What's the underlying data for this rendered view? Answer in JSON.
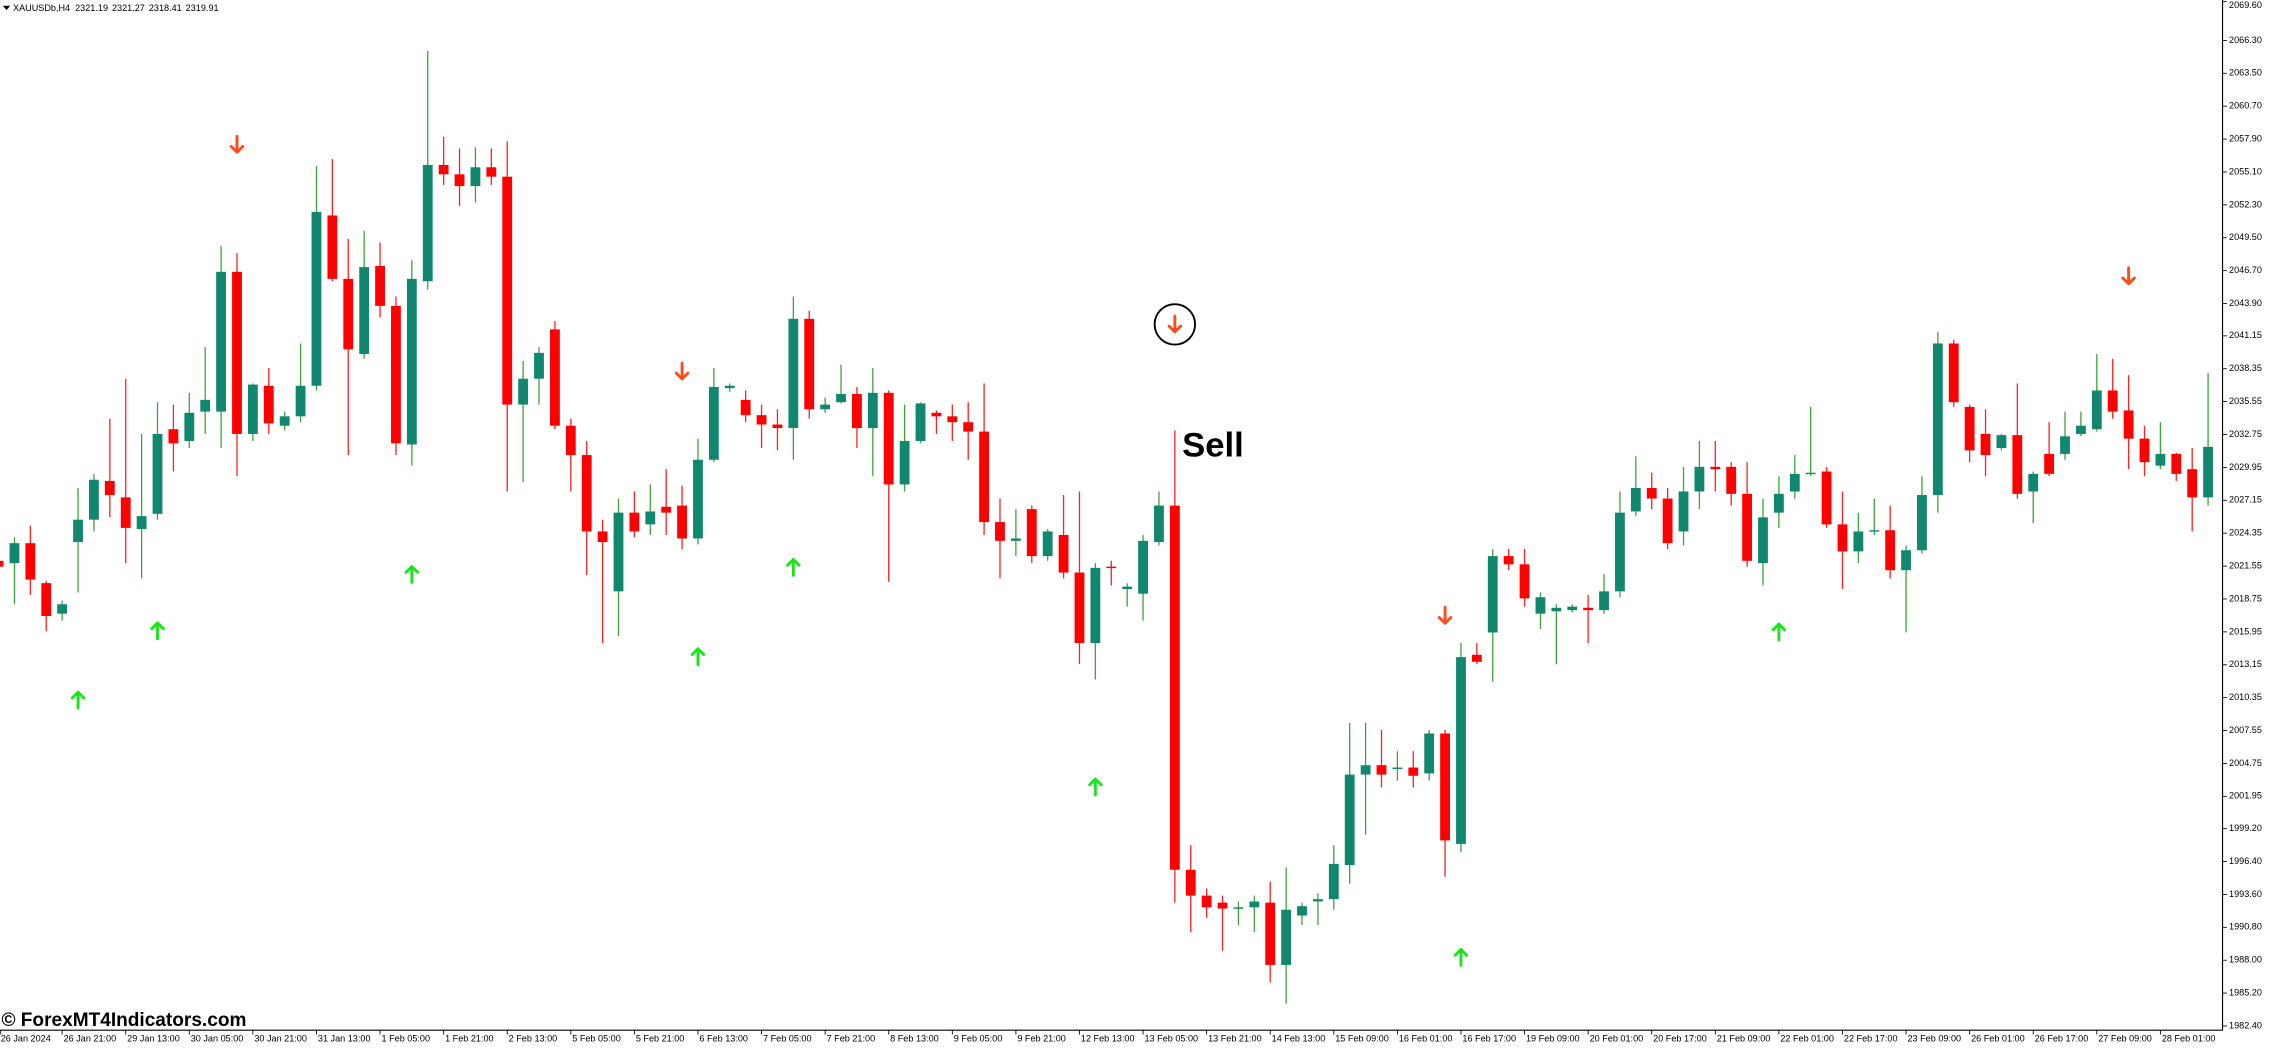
{
  "chart_data": {
    "type": "candlestick",
    "title": "XAUUSDb,H4",
    "last_quote": [
      2321.19,
      2321.27,
      2318.41,
      2319.91
    ],
    "annotation": "Sell",
    "watermark": "© ForexMT4Indicators.com",
    "up_color": "#11876f",
    "down_color": "#ff0000",
    "up_wick_color": "#3aa63a",
    "down_wick_color": "#ff2020",
    "buy_color": "#19e619",
    "sell_color": "#ff4a1a",
    "grid": false,
    "ylim": [
      1982.04,
      2069.74
    ],
    "yticks": [
      {
        "value": 2069.6,
        "label": "2069.60"
      },
      {
        "value": 2066.3,
        "label": "2066.30"
      },
      {
        "value": 2063.5,
        "label": "2063.50"
      },
      {
        "value": 2060.7,
        "label": "2060.70"
      },
      {
        "value": 2057.9,
        "label": "2057.90"
      },
      {
        "value": 2055.1,
        "label": "2055.10"
      },
      {
        "value": 2052.3,
        "label": "2052.30"
      },
      {
        "value": 2049.5,
        "label": "2049.50"
      },
      {
        "value": 2046.7,
        "label": "2046.70"
      },
      {
        "value": 2043.9,
        "label": "2043.90"
      },
      2041.15,
      2038.35,
      2035.55,
      2032.75,
      2029.95,
      2027.15,
      2024.35,
      2021.55,
      2018.75,
      2015.95,
      2013.15,
      2010.35,
      2007.55,
      2004.75,
      2001.95,
      {
        "value": 1999.2,
        "label": "1999.20"
      },
      {
        "value": 1996.4,
        "label": "1996.40"
      },
      {
        "value": 1993.6,
        "label": "1993.60"
      },
      {
        "value": 1990.8,
        "label": "1990.80"
      },
      {
        "value": 1988.0,
        "label": "1988.00"
      },
      {
        "value": 1985.2,
        "label": "1985.20"
      },
      {
        "value": 1982.4,
        "label": "1982.40"
      }
    ],
    "categories": [
      "26 Jan 2024",
      null,
      null,
      null,
      "26 Jan 21:00",
      null,
      null,
      null,
      "29 Jan 13:00",
      null,
      null,
      null,
      "30 Jan 05:00",
      null,
      null,
      null,
      "30 Jan 21:00",
      null,
      null,
      null,
      "31 Jan 13:00",
      null,
      null,
      null,
      "1 Feb 05:00",
      null,
      null,
      null,
      "1 Feb 21:00",
      null,
      null,
      null,
      "2 Feb 13:00",
      null,
      null,
      null,
      "5 Feb 05:00",
      null,
      null,
      null,
      "5 Feb 21:00",
      null,
      null,
      null,
      "6 Feb 13:00",
      null,
      null,
      null,
      "7 Feb 05:00",
      null,
      null,
      null,
      "7 Feb 21:00",
      null,
      null,
      null,
      "8 Feb 13:00",
      null,
      null,
      null,
      "9 Feb 05:00",
      null,
      null,
      null,
      "9 Feb 21:00",
      null,
      null,
      null,
      "12 Feb 13:00",
      null,
      null,
      null,
      "13 Feb 05:00",
      null,
      null,
      null,
      "13 Feb 21:00",
      null,
      null,
      null,
      "14 Feb 13:00",
      null,
      null,
      null,
      "15 Feb 09:00",
      null,
      null,
      null,
      "16 Feb 01:00",
      null,
      null,
      null,
      "16 Feb 17:00",
      null,
      null,
      null,
      "19 Feb 09:00",
      null,
      null,
      null,
      "20 Feb 01:00",
      null,
      null,
      null,
      "20 Feb 17:00",
      null,
      null,
      null,
      "21 Feb 09:00",
      null,
      null,
      null,
      "22 Feb 01:00",
      null,
      null,
      null,
      "22 Feb 17:00",
      null,
      null,
      null,
      "23 Feb 09:00",
      null,
      null,
      null,
      "26 Feb 01:00",
      null,
      null,
      null,
      "26 Feb 17:00",
      null,
      null,
      null,
      "27 Feb 09:00",
      null,
      null,
      null,
      "28 Feb 01:00",
      null,
      null,
      null
    ],
    "ohlc": [
      [
        2022.0,
        2022.4,
        2021.2,
        2021.5
      ],
      [
        2021.8,
        2024.0,
        2018.3,
        2023.5
      ],
      [
        2023.5,
        2025.0,
        2019.1,
        2020.4
      ],
      [
        2020.1,
        2020.3,
        2016.0,
        2017.3
      ],
      [
        2017.5,
        2018.6,
        2016.9,
        2018.3
      ],
      [
        2023.6,
        2028.2,
        2019.3,
        2025.5
      ],
      [
        2025.5,
        2029.4,
        2024.5,
        2028.9
      ],
      [
        2028.8,
        2034.1,
        2025.7,
        2027.6
      ],
      [
        2027.4,
        2037.5,
        2021.8,
        2024.8
      ],
      [
        2024.7,
        2032.8,
        2020.5,
        2025.8
      ],
      [
        2026.0,
        2035.5,
        2025.5,
        2032.8
      ],
      [
        2033.2,
        2035.3,
        2029.6,
        2032.0
      ],
      [
        2032.2,
        2036.3,
        2031.6,
        2034.6
      ],
      [
        2034.7,
        2040.2,
        2032.8,
        2035.7
      ],
      [
        2034.7,
        2048.8,
        2031.6,
        2046.6
      ],
      [
        2046.6,
        2048.2,
        2029.2,
        2032.8
      ],
      [
        2032.8,
        2037.1,
        2032.2,
        2037.0
      ],
      [
        2036.9,
        2038.4,
        2032.8,
        2033.7
      ],
      [
        2033.5,
        2034.7,
        2033.1,
        2034.3
      ],
      [
        2034.3,
        2040.5,
        2033.8,
        2036.9
      ],
      [
        2036.9,
        2055.6,
        2036.5,
        2051.7
      ],
      [
        2051.4,
        2056.2,
        2045.8,
        2046.0
      ],
      [
        2046.0,
        2049.4,
        2031.0,
        2040.0
      ],
      [
        2039.6,
        2050.1,
        2039.2,
        2047.0
      ],
      [
        2047.1,
        2049.1,
        2042.7,
        2043.7
      ],
      [
        2043.7,
        2044.5,
        2031.0,
        2032.0
      ],
      [
        2031.9,
        2047.6,
        2030.1,
        2046.0
      ],
      [
        2045.8,
        2065.4,
        2045.1,
        2055.7
      ],
      [
        2055.7,
        2058.1,
        2054.0,
        2054.9
      ],
      [
        2054.9,
        2057.1,
        2052.2,
        2053.9
      ],
      [
        2053.9,
        2057.2,
        2052.5,
        2055.5
      ],
      [
        2055.5,
        2057.1,
        2054.0,
        2054.7
      ],
      [
        2054.7,
        2057.7,
        2027.9,
        2035.3
      ],
      [
        2035.3,
        2039.0,
        2028.7,
        2037.5
      ],
      [
        2037.5,
        2040.2,
        2035.3,
        2039.7
      ],
      [
        2041.7,
        2042.4,
        2033.2,
        2033.5
      ],
      [
        2033.5,
        2034.1,
        2027.9,
        2031.0
      ],
      [
        2031.0,
        2032.2,
        2020.8,
        2024.5
      ],
      [
        2024.5,
        2025.5,
        2015.0,
        2023.6
      ],
      [
        2019.4,
        2027.3,
        2015.6,
        2026.1
      ],
      [
        2026.1,
        2027.9,
        2024.0,
        2024.5
      ],
      [
        2025.1,
        2028.5,
        2024.2,
        2026.2
      ],
      [
        2026.6,
        2029.8,
        2024.2,
        2026.1
      ],
      [
        2026.7,
        2028.4,
        2023.0,
        2023.9
      ],
      [
        2023.9,
        2032.4,
        2023.4,
        2030.6
      ],
      [
        2030.6,
        2038.4,
        2030.4,
        2036.8
      ],
      [
        2036.7,
        2037.1,
        2036.4,
        2036.9
      ],
      [
        2035.7,
        2036.5,
        2033.8,
        2034.4
      ],
      [
        2034.4,
        2035.3,
        2031.6,
        2033.6
      ],
      [
        2033.6,
        2034.9,
        2031.4,
        2033.3
      ],
      [
        2033.3,
        2044.5,
        2030.6,
        2042.6
      ],
      [
        2042.6,
        2043.3,
        2034.1,
        2034.9
      ],
      [
        2034.9,
        2035.9,
        2034.6,
        2035.3
      ],
      [
        2035.5,
        2038.7,
        2035.4,
        2036.2
      ],
      [
        2036.2,
        2036.8,
        2031.6,
        2033.3
      ],
      [
        2033.3,
        2038.4,
        2029.2,
        2036.3
      ],
      [
        2036.3,
        2036.5,
        2020.2,
        2028.5
      ],
      [
        2028.5,
        2035.3,
        2027.9,
        2032.2
      ],
      [
        2032.2,
        2035.5,
        2032.0,
        2035.4
      ],
      [
        2034.6,
        2034.8,
        2032.8,
        2034.3
      ],
      [
        2034.3,
        2035.3,
        2032.2,
        2033.8
      ],
      [
        2033.8,
        2035.5,
        2030.6,
        2033.0
      ],
      [
        2033.0,
        2037.1,
        2024.2,
        2025.3
      ],
      [
        2025.3,
        2027.3,
        2020.5,
        2023.7
      ],
      [
        2023.7,
        2026.4,
        2022.4,
        2023.9
      ],
      [
        2026.4,
        2026.7,
        2021.8,
        2022.4
      ],
      [
        2022.4,
        2024.7,
        2022.0,
        2024.5
      ],
      [
        2024.2,
        2027.6,
        2020.5,
        2021.0
      ],
      [
        2021.0,
        2027.9,
        2013.2,
        2015.0
      ],
      [
        2015.0,
        2021.8,
        2011.9,
        2021.4
      ],
      [
        2021.5,
        2022.0,
        2019.9,
        2021.4
      ],
      [
        2019.6,
        2020.1,
        2018.1,
        2019.8
      ],
      [
        2019.2,
        2024.2,
        2016.9,
        2023.7
      ],
      [
        2023.6,
        2027.9,
        2023.3,
        2026.7
      ],
      [
        2026.7,
        2033.1,
        1992.9,
        1995.7
      ],
      [
        1995.7,
        1997.8,
        1990.4,
        1993.5
      ],
      [
        1993.5,
        1994.1,
        1991.6,
        1992.5
      ],
      [
        1992.9,
        1993.5,
        1988.8,
        1992.4
      ],
      [
        1992.4,
        1993.0,
        1991.0,
        1992.5
      ],
      [
        1992.5,
        1993.5,
        1990.4,
        1993.0
      ],
      [
        1992.9,
        1994.7,
        1986.1,
        1987.6
      ],
      [
        1987.6,
        1995.9,
        1984.3,
        1992.3
      ],
      [
        1991.8,
        1992.9,
        1991.0,
        1992.6
      ],
      [
        1993.0,
        1993.7,
        1991.0,
        1993.2
      ],
      [
        1993.2,
        1997.8,
        1992.3,
        1996.2
      ],
      [
        1996.1,
        2008.2,
        1994.5,
        2003.8
      ],
      [
        2003.8,
        2008.2,
        1998.7,
        2004.6
      ],
      [
        2004.6,
        2007.6,
        2002.7,
        2003.8
      ],
      [
        2004.3,
        2005.8,
        2003.3,
        2004.4
      ],
      [
        2004.4,
        2005.8,
        2002.7,
        2003.7
      ],
      [
        2003.9,
        2007.6,
        2003.3,
        2007.3
      ],
      [
        2007.3,
        2007.6,
        1995.1,
        1998.2
      ],
      [
        1997.9,
        2015.0,
        1997.2,
        2013.8
      ],
      [
        2014.0,
        2015.0,
        2013.2,
        2013.4
      ],
      [
        2015.9,
        2023.0,
        2011.7,
        2022.4
      ],
      [
        2022.4,
        2023.0,
        2021.2,
        2021.7
      ],
      [
        2021.7,
        2023.0,
        2018.1,
        2018.8
      ],
      [
        2017.5,
        2019.3,
        2016.2,
        2018.9
      ],
      [
        2017.7,
        2018.3,
        2013.2,
        2018.0
      ],
      [
        2017.8,
        2018.3,
        2017.6,
        2018.1
      ],
      [
        2018.0,
        2019.1,
        2015.0,
        2017.8
      ],
      [
        2017.8,
        2020.9,
        2017.5,
        2019.4
      ],
      [
        2019.4,
        2027.9,
        2018.9,
        2026.1
      ],
      [
        2026.2,
        2030.9,
        2025.8,
        2028.2
      ],
      [
        2028.2,
        2029.5,
        2026.4,
        2027.3
      ],
      [
        2027.3,
        2028.2,
        2023.0,
        2023.5
      ],
      [
        2024.5,
        2030.0,
        2023.3,
        2027.9
      ],
      [
        2027.9,
        2032.2,
        2026.4,
        2030.0
      ],
      [
        2030.0,
        2032.2,
        2027.9,
        2029.8
      ],
      [
        2030.0,
        2030.4,
        2026.7,
        2027.7
      ],
      [
        2027.7,
        2030.4,
        2021.5,
        2022.0
      ],
      [
        2021.8,
        2027.3,
        2019.9,
        2025.7
      ],
      [
        2026.1,
        2029.2,
        2024.8,
        2027.7
      ],
      [
        2027.9,
        2031.0,
        2027.3,
        2029.4
      ],
      [
        2029.4,
        2035.1,
        2029.2,
        2029.5
      ],
      [
        2029.6,
        2030.0,
        2024.8,
        2025.1
      ],
      [
        2025.1,
        2027.9,
        2019.6,
        2022.8
      ],
      [
        2022.8,
        2026.1,
        2021.8,
        2024.5
      ],
      [
        2024.5,
        2027.3,
        2024.2,
        2024.6
      ],
      [
        2024.6,
        2026.7,
        2020.5,
        2021.2
      ],
      [
        2021.2,
        2023.3,
        2015.9,
        2022.9
      ],
      [
        2022.9,
        2029.2,
        2022.6,
        2027.6
      ],
      [
        2027.6,
        2041.5,
        2026.1,
        2040.5
      ],
      [
        2040.5,
        2040.8,
        2035.1,
        2035.5
      ],
      [
        2035.1,
        2035.3,
        2030.4,
        2031.4
      ],
      [
        2032.8,
        2034.9,
        2029.2,
        2031.0
      ],
      [
        2031.6,
        2032.8,
        2031.4,
        2032.7
      ],
      [
        2032.7,
        2037.1,
        2027.3,
        2027.7
      ],
      [
        2027.9,
        2029.6,
        2025.2,
        2029.4
      ],
      [
        2031.1,
        2033.8,
        2029.2,
        2029.4
      ],
      [
        2031.1,
        2034.7,
        2030.6,
        2032.6
      ],
      [
        2032.8,
        2034.7,
        2032.6,
        2033.5
      ],
      [
        2033.2,
        2039.6,
        2033.0,
        2036.5
      ],
      [
        2036.5,
        2039.2,
        2034.1,
        2034.7
      ],
      [
        2034.8,
        2037.8,
        2029.8,
        2032.4
      ],
      [
        2032.4,
        2033.5,
        2029.2,
        2030.4
      ],
      [
        2030.1,
        2033.8,
        2029.8,
        2031.1
      ],
      [
        2031.1,
        2031.2,
        2028.8,
        2029.4
      ],
      [
        2029.8,
        2031.6,
        2024.5,
        2027.4
      ],
      [
        2027.4,
        2038.0,
        2026.7,
        2031.7
      ]
    ],
    "buy_signals": [
      {
        "candle": 5,
        "price": 2010.2
      },
      {
        "candle": 10,
        "price": 2016.1
      },
      {
        "candle": 26,
        "price": 2020.9
      },
      {
        "candle": 44,
        "price": 2013.9
      },
      {
        "candle": 50,
        "price": 2021.5
      },
      {
        "candle": 69,
        "price": 2002.8
      },
      {
        "candle": 92,
        "price": 1988.3
      },
      {
        "candle": 112,
        "price": 2016.0
      }
    ],
    "sell_signals": [
      {
        "candle": 15,
        "price": 2057.4
      },
      {
        "candle": 43,
        "price": 2038.1
      },
      {
        "candle": 74,
        "price": 2042.1
      },
      {
        "candle": 91,
        "price": 2017.3
      },
      {
        "candle": 134,
        "price": 2046.2
      }
    ]
  }
}
